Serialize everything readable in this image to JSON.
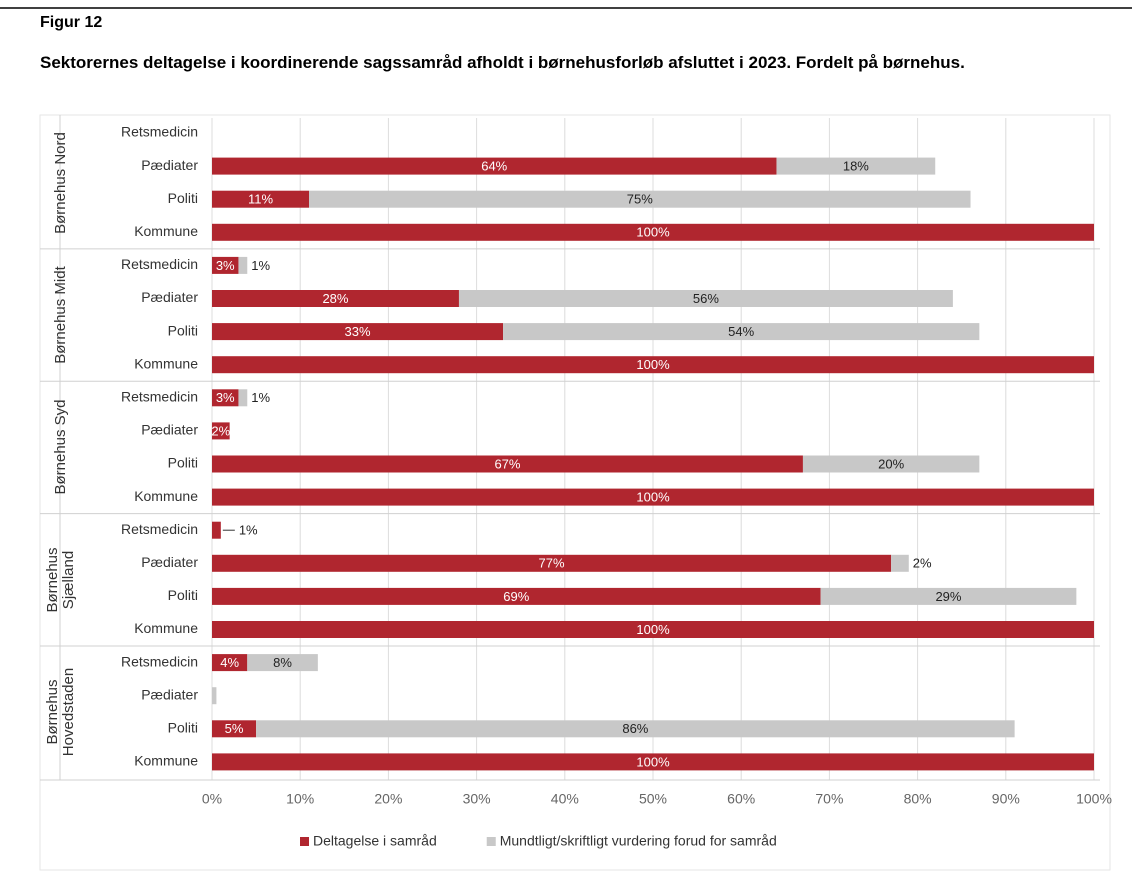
{
  "chart_data": {
    "type": "stacked_barh",
    "figure_label": "Figur 12",
    "title": "Sektorernes deltagelse i koordinerende sagssamråd afholdt i børnehusforløb afsluttet i 2023. Fordelt på børnehus.",
    "groups": [
      "Børnehus Nord",
      "Børnehus Midt",
      "Børnehus Syd",
      "Børnehus Sjælland",
      "Børnehus Hovedstaden"
    ],
    "categories": [
      "Retsmedicin",
      "Pædiater",
      "Politi",
      "Kommune",
      "Retsmedicin",
      "Pædiater",
      "Politi",
      "Kommune",
      "Retsmedicin",
      "Pædiater",
      "Politi",
      "Kommune",
      "Retsmedicin",
      "Pædiater",
      "Politi",
      "Kommune",
      "Retsmedicin",
      "Pædiater",
      "Politi",
      "Kommune"
    ],
    "series": [
      {
        "name": "Deltagelse i samråd",
        "color": "#b0262f",
        "values": [
          0,
          64,
          11,
          100,
          3,
          28,
          33,
          100,
          3,
          2,
          67,
          100,
          1,
          77,
          69,
          100,
          4,
          0,
          5,
          100
        ],
        "value_labels": [
          null,
          "64%",
          "11%",
          "100%",
          "3%",
          "28%",
          "33%",
          "100%",
          "3%",
          "2%",
          "67%",
          "100%",
          "1%",
          "77%",
          "69%",
          "100%",
          "4%",
          null,
          "5%",
          "100%"
        ]
      },
      {
        "name": "Mundtligt/skriftligt vurdering forud for samråd",
        "color": "#c8c8c8",
        "values": [
          0,
          18,
          75,
          0,
          1,
          56,
          54,
          0,
          1,
          0,
          20,
          0,
          0,
          2,
          29,
          0,
          8,
          0.5,
          86,
          0
        ],
        "value_labels": [
          null,
          "18%",
          "75%",
          null,
          "1%",
          "56%",
          "54%",
          null,
          "1%",
          null,
          "20%",
          null,
          null,
          "2%",
          "29%",
          null,
          "8%",
          null,
          "86%",
          null
        ]
      }
    ],
    "xlim": [
      0,
      100
    ],
    "xticks": [
      {
        "value": 0,
        "label": "0%"
      },
      {
        "value": 10,
        "label": "10%"
      },
      {
        "value": 20,
        "label": "20%"
      },
      {
        "value": 30,
        "label": "30%"
      },
      {
        "value": 40,
        "label": "40%"
      },
      {
        "value": 50,
        "label": "50%"
      },
      {
        "value": 60,
        "label": "60%"
      },
      {
        "value": 70,
        "label": "70%"
      },
      {
        "value": 80,
        "label": "80%"
      },
      {
        "value": 90,
        "label": "90%"
      },
      {
        "value": 100,
        "label": "100%"
      }
    ],
    "grid": true,
    "legend": "bottom"
  }
}
